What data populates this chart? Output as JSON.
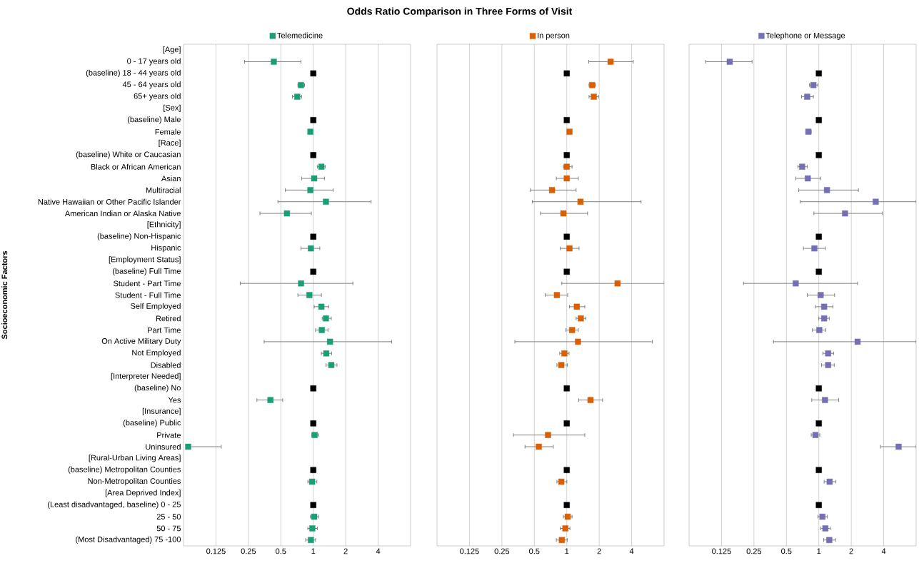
{
  "chart_data": [
    {
      "type": "scatter",
      "orientation": "horizontal",
      "title": "Odds Ratio Comparison in Three Forms of Visit",
      "ylabel": "Socioeconomic Factors",
      "log": "x",
      "grid": "x",
      "legend": "top",
      "marker": "square",
      "xlim": [
        0.0625,
        8
      ],
      "xticks": [
        0.125,
        0.25,
        0.5,
        1,
        2,
        4
      ],
      "categories": [
        "[Age]",
        "0 - 17 years old",
        "(baseline) 18 - 44 years old",
        "45 - 64 years old",
        "65+ years old",
        "[Sex]",
        "(baseline) Male",
        "Female",
        "[Race]",
        "(baseline) White or Caucasian",
        "Black or African American",
        "Asian",
        "Multiracial",
        "Native Hawaiian or Other Pacific Islander",
        "American Indian or Alaska Native",
        "[Ethnicity]",
        "(baseline) Non-Hispanic",
        "Hispanic",
        "[Employment Status]",
        "(baseline) Full Time",
        "Student - Part Time",
        "Student - Full Time",
        "Self Employed",
        "Retired",
        "Part Time",
        "On Active Military Duty",
        "Not Employed",
        "Disabled",
        "[Interpreter Needed]",
        "(baseline) No",
        "Yes",
        "[Insurance]",
        "(baseline) Public",
        "Private",
        "Uninsured",
        "[Rural-Urban Living Areas]",
        "(baseline) Metropolitan Counties",
        "Non-Metropolitan Counties",
        "[Area Deprived Index]",
        "(Least disadvantaged, baseline) 0 - 25",
        "25 - 50",
        "50 - 75",
        "(Most Disadvantaged) 75 -100"
      ],
      "series": [
        {
          "name": "Telemedicine",
          "color": "#1b9e77",
          "values": [
            null,
            0.43,
            null,
            0.77,
            0.71,
            null,
            null,
            0.94,
            null,
            null,
            1.19,
            1.02,
            0.94,
            1.31,
            0.57,
            null,
            null,
            0.95,
            null,
            null,
            0.77,
            0.92,
            1.19,
            1.31,
            1.2,
            1.43,
            1.32,
            1.47,
            null,
            null,
            0.4,
            null,
            null,
            1.03,
            0.069,
            null,
            null,
            0.975,
            null,
            null,
            1.02,
            0.98,
            0.95
          ],
          "errors": [
            null,
            [
              0.23,
              0.77
            ],
            null,
            [
              0.72,
              0.83
            ],
            [
              0.64,
              0.78
            ],
            null,
            null,
            null,
            null,
            null,
            [
              1.09,
              1.29
            ],
            [
              0.78,
              1.27
            ],
            [
              0.55,
              1.53
            ],
            [
              0.47,
              3.44
            ],
            [
              0.32,
              0.96
            ],
            null,
            null,
            [
              0.77,
              1.15
            ],
            null,
            null,
            [
              0.21,
              2.33
            ],
            [
              0.72,
              1.19
            ],
            [
              1.02,
              1.39
            ],
            [
              1.21,
              1.47
            ],
            [
              1.05,
              1.37
            ],
            [
              0.35,
              5.35
            ],
            [
              1.19,
              1.48
            ],
            [
              1.31,
              1.66
            ],
            null,
            null,
            [
              0.3,
              0.52
            ],
            null,
            null,
            [
              0.97,
              1.12
            ],
            [
              0.069,
              0.14
            ],
            null,
            null,
            [
              0.89,
              1.08
            ],
            null,
            null,
            [
              0.94,
              1.12
            ],
            [
              0.89,
              1.09
            ],
            [
              0.85,
              1.05
            ]
          ]
        },
        {
          "color": "#000000",
          "values": [
            null,
            null,
            1,
            null,
            null,
            null,
            1,
            null,
            null,
            1,
            null,
            null,
            null,
            null,
            null,
            null,
            1,
            null,
            null,
            1,
            null,
            null,
            null,
            null,
            null,
            null,
            null,
            null,
            null,
            1,
            null,
            null,
            1,
            null,
            null,
            null,
            1,
            null,
            null,
            1,
            null,
            null,
            null
          ]
        }
      ]
    },
    {
      "type": "scatter",
      "orientation": "horizontal",
      "log": "x",
      "grid": "x",
      "legend": "top",
      "marker": "square",
      "tick_labels": "x",
      "xlim": [
        0.0625,
        8
      ],
      "xticks": [
        0.125,
        0.25,
        0.5,
        1,
        2,
        4
      ],
      "categories": [
        null,
        null,
        null,
        null,
        null,
        null,
        null,
        null,
        null,
        null,
        null,
        null,
        null,
        null,
        null,
        null,
        null,
        null,
        null,
        null,
        null,
        null,
        null,
        null,
        null,
        null,
        null,
        null,
        null,
        null,
        null,
        null,
        null,
        null,
        null,
        null,
        null,
        null,
        null,
        null,
        null,
        null,
        null
      ],
      "series": [
        {
          "name": "In person",
          "color": "#d95f02",
          "values": [
            null,
            2.55,
            null,
            1.72,
            1.78,
            null,
            null,
            1.06,
            null,
            null,
            1.0,
            1.0,
            0.73,
            1.34,
            0.93,
            null,
            null,
            1.06,
            null,
            null,
            2.96,
            0.81,
            1.24,
            1.35,
            1.12,
            1.27,
            0.95,
            0.89,
            null,
            null,
            1.66,
            null,
            null,
            0.67,
            0.55,
            null,
            null,
            0.89,
            null,
            null,
            1.02,
            0.97,
            0.9
          ],
          "errors": [
            null,
            [
              1.6,
              4.14
            ],
            null,
            [
              1.61,
              1.85
            ],
            [
              1.61,
              1.97
            ],
            null,
            null,
            null,
            null,
            null,
            [
              0.93,
              1.12
            ],
            [
              0.8,
              1.28
            ],
            [
              0.46,
              1.22
            ],
            [
              0.48,
              4.89
            ],
            [
              0.57,
              1.56
            ],
            null,
            null,
            [
              0.87,
              1.3
            ],
            null,
            null,
            [
              0.9,
              8
            ],
            [
              0.63,
              1.02
            ],
            [
              1.06,
              1.47
            ],
            [
              1.22,
              1.5
            ],
            [
              0.98,
              1.28
            ],
            [
              0.33,
              6.23
            ],
            [
              0.86,
              1.05
            ],
            [
              0.81,
              1.01
            ],
            null,
            null,
            [
              1.29,
              2.15
            ],
            null,
            null,
            [
              0.32,
              1.47
            ],
            [
              0.41,
              0.75
            ],
            null,
            null,
            [
              0.81,
              1.0
            ],
            null,
            null,
            [
              0.93,
              1.12
            ],
            [
              0.87,
              1.07
            ],
            [
              0.8,
              1.01
            ]
          ]
        },
        {
          "color": "#000000",
          "values": [
            null,
            null,
            1,
            null,
            null,
            null,
            1,
            null,
            null,
            1,
            null,
            null,
            null,
            null,
            null,
            null,
            1,
            null,
            null,
            1,
            null,
            null,
            null,
            null,
            null,
            null,
            null,
            null,
            null,
            1,
            null,
            null,
            1,
            null,
            null,
            null,
            1,
            null,
            null,
            1,
            null,
            null,
            null
          ]
        }
      ]
    },
    {
      "type": "scatter",
      "orientation": "horizontal",
      "log": "x",
      "grid": "x",
      "legend": "top",
      "marker": "square",
      "tick_labels": "x",
      "xlim": [
        0.0625,
        8
      ],
      "xticks": [
        0.125,
        0.25,
        0.5,
        1,
        2,
        4
      ],
      "categories": [
        null,
        null,
        null,
        null,
        null,
        null,
        null,
        null,
        null,
        null,
        null,
        null,
        null,
        null,
        null,
        null,
        null,
        null,
        null,
        null,
        null,
        null,
        null,
        null,
        null,
        null,
        null,
        null,
        null,
        null,
        null,
        null,
        null,
        null,
        null,
        null,
        null,
        null,
        null,
        null,
        null,
        null,
        null
      ],
      "series": [
        {
          "name": "Telephone or Message",
          "color": "#7570b3",
          "values": [
            null,
            0.149,
            null,
            0.89,
            0.78,
            null,
            null,
            0.8,
            null,
            null,
            0.7,
            0.79,
            1.19,
            3.37,
            1.75,
            null,
            null,
            0.91,
            null,
            null,
            0.61,
            1.04,
            1.12,
            1.12,
            1.01,
            2.29,
            1.22,
            1.22,
            null,
            null,
            1.14,
            null,
            null,
            0.93,
            5.5,
            null,
            null,
            1.26,
            null,
            null,
            1.08,
            1.15,
            1.25
          ],
          "errors": [
            null,
            [
              0.089,
              0.24
            ],
            null,
            [
              0.82,
              0.98
            ],
            [
              0.69,
              0.89
            ],
            null,
            null,
            [
              0.76,
              0.85
            ],
            null,
            null,
            [
              0.64,
              0.78
            ],
            [
              0.61,
              1.04
            ],
            [
              0.65,
              2.33
            ],
            [
              0.67,
              8
            ],
            [
              0.9,
              3.88
            ],
            null,
            null,
            [
              0.72,
              1.15
            ],
            null,
            null,
            [
              0.2,
              2.29
            ],
            [
              0.78,
              1.4
            ],
            [
              0.93,
              1.35
            ],
            [
              1.0,
              1.25
            ],
            [
              0.87,
              1.16
            ],
            [
              0.38,
              8
            ],
            [
              1.09,
              1.37
            ],
            [
              1.06,
              1.39
            ],
            null,
            null,
            [
              0.86,
              1.53
            ],
            null,
            null,
            [
              0.85,
              1.02
            ],
            [
              3.73,
              8
            ],
            null,
            null,
            [
              1.12,
              1.44
            ],
            null,
            null,
            [
              0.98,
              1.2
            ],
            [
              1.04,
              1.28
            ],
            [
              1.11,
              1.43
            ]
          ]
        },
        {
          "color": "#000000",
          "values": [
            null,
            null,
            1,
            null,
            null,
            null,
            1,
            null,
            null,
            1,
            null,
            null,
            null,
            null,
            null,
            null,
            1,
            null,
            null,
            1,
            null,
            null,
            null,
            null,
            null,
            null,
            null,
            null,
            null,
            1,
            null,
            null,
            1,
            null,
            null,
            null,
            1,
            null,
            null,
            1,
            null,
            null,
            null
          ]
        }
      ]
    }
  ]
}
